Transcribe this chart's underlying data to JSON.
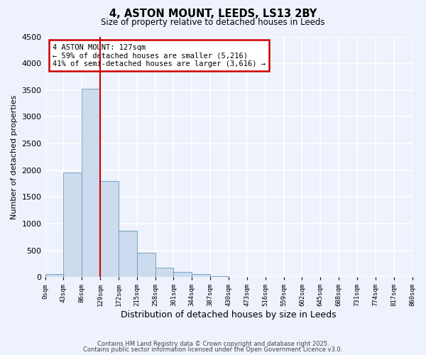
{
  "title": "4, ASTON MOUNT, LEEDS, LS13 2BY",
  "subtitle": "Size of property relative to detached houses in Leeds",
  "xlabel": "Distribution of detached houses by size in Leeds",
  "ylabel": "Number of detached properties",
  "bar_values": [
    50,
    1950,
    3520,
    1800,
    860,
    450,
    175,
    90,
    50,
    20,
    0,
    0,
    0,
    0,
    0,
    0,
    0,
    0,
    0,
    0
  ],
  "bin_labels": [
    "0sqm",
    "43sqm",
    "86sqm",
    "129sqm",
    "172sqm",
    "215sqm",
    "258sqm",
    "301sqm",
    "344sqm",
    "387sqm",
    "430sqm",
    "473sqm",
    "516sqm",
    "559sqm",
    "602sqm",
    "645sqm",
    "688sqm",
    "731sqm",
    "774sqm",
    "817sqm",
    "860sqm"
  ],
  "bar_color": "#ccdcee",
  "bar_edge_color": "#6699bb",
  "background_color": "#eef2fc",
  "grid_color": "#ffffff",
  "vline_x": 3,
  "vline_color": "#cc0000",
  "annotation_text": "4 ASTON MOUNT: 127sqm\n← 59% of detached houses are smaller (5,216)\n41% of semi-detached houses are larger (3,616) →",
  "annotation_box_color": "#ffffff",
  "annotation_box_edge": "#cc0000",
  "ylim": [
    0,
    4500
  ],
  "yticks": [
    0,
    500,
    1000,
    1500,
    2000,
    2500,
    3000,
    3500,
    4000,
    4500
  ],
  "footer1": "Contains HM Land Registry data © Crown copyright and database right 2025.",
  "footer2": "Contains public sector information licensed under the Open Government Licence v3.0."
}
